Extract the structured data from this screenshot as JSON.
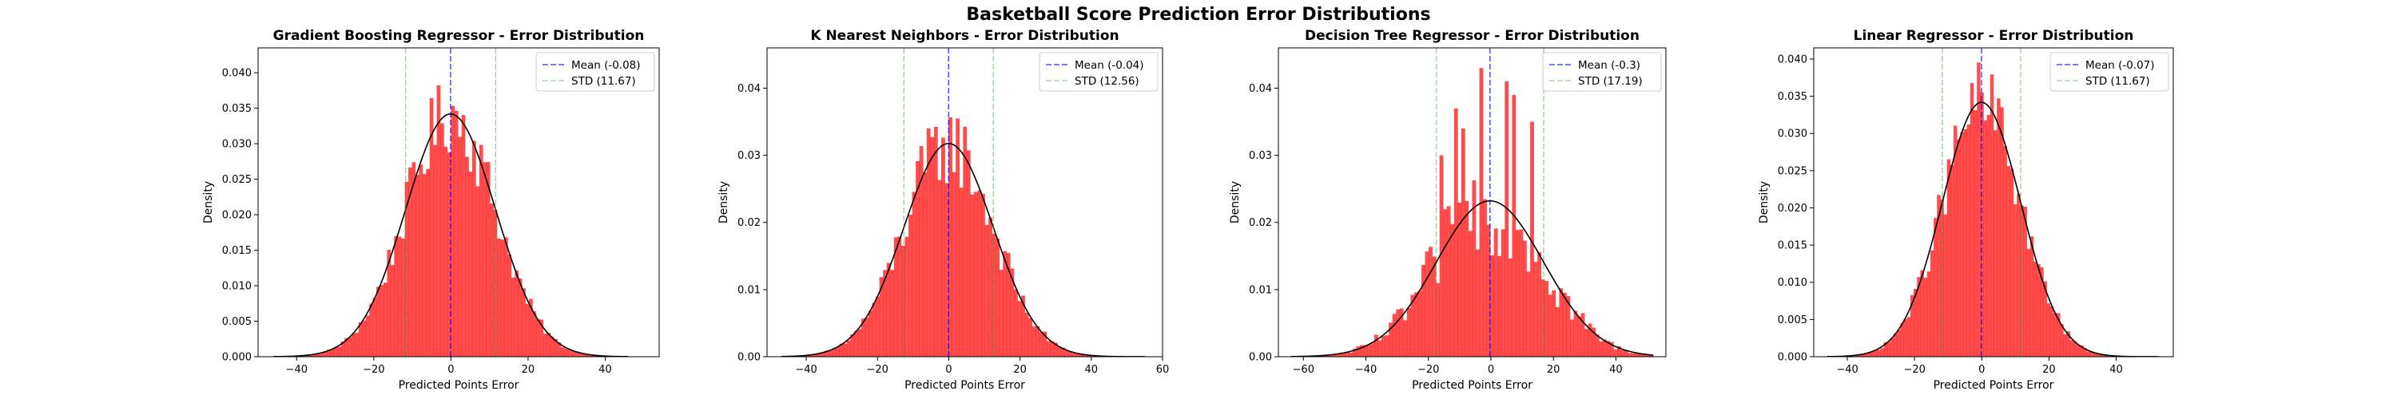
{
  "figure": {
    "suptitle": "Basketball Score Prediction Error Distributions"
  },
  "colors": {
    "bars": "#ff0000",
    "mean_line": "#0000ff",
    "std_line": "#2ca02c",
    "pdf_line": "#000000"
  },
  "chart_data": [
    {
      "type": "bar",
      "title": "Gradient Boosting Regressor - Error Distribution",
      "xlabel": "Predicted Points Error",
      "ylabel": "Density",
      "xlim": [
        -50,
        54
      ],
      "ylim": [
        0,
        0.0435
      ],
      "xticks": [
        -40,
        -20,
        0,
        20,
        40
      ],
      "xtick_labels": [
        "−40",
        "−20",
        "0",
        "20",
        "40"
      ],
      "yticks": [
        0,
        0.005,
        0.01,
        0.015,
        0.02,
        0.025,
        0.03,
        0.035,
        0.04
      ],
      "ytick_labels": [
        "0.000",
        "0.005",
        "0.010",
        "0.015",
        "0.020",
        "0.025",
        "0.030",
        "0.035",
        "0.040"
      ],
      "mean": -0.08,
      "std": 11.67,
      "hist_range": [
        -46,
        46
      ],
      "bins": 100,
      "jitter": 0.17,
      "legend": [
        "Mean (-0.08)",
        "STD (11.67)"
      ],
      "legend_loc": "upper right"
    },
    {
      "type": "bar",
      "title": "K Nearest Neighbors - Error Distribution",
      "xlabel": "Predicted Points Error",
      "ylabel": "Density",
      "xlim": [
        -51,
        60
      ],
      "ylim": [
        0,
        0.046
      ],
      "xticks": [
        -40,
        -20,
        0,
        20,
        40,
        60
      ],
      "xtick_labels": [
        "−40",
        "−20",
        "0",
        "20",
        "40",
        "60"
      ],
      "yticks": [
        0,
        0.01,
        0.02,
        0.03,
        0.04
      ],
      "ytick_labels": [
        "0.00",
        "0.01",
        "0.02",
        "0.03",
        "0.04"
      ],
      "mean": -0.04,
      "std": 12.56,
      "hist_range": [
        -47,
        55
      ],
      "bins": 100,
      "jitter": 0.2,
      "legend": [
        "Mean (-0.04)",
        "STD (12.56)"
      ],
      "legend_loc": "upper right"
    },
    {
      "type": "bar",
      "title": "Decision Tree Regressor - Error Distribution",
      "xlabel": "Predicted Points Error",
      "ylabel": "Density",
      "xlim": [
        -68,
        56
      ],
      "ylim": [
        0,
        0.046
      ],
      "xticks": [
        -60,
        -40,
        -20,
        0,
        20,
        40
      ],
      "xtick_labels": [
        "−60",
        "−40",
        "−20",
        "0",
        "20",
        "40"
      ],
      "yticks": [
        0,
        0.01,
        0.02,
        0.03,
        0.04
      ],
      "ytick_labels": [
        "0.00",
        "0.01",
        "0.02",
        "0.03",
        "0.04"
      ],
      "mean": -0.3,
      "std": 17.19,
      "hist_range": [
        -64,
        52
      ],
      "bins": 100,
      "jitter": 0.35,
      "spikes": [
        {
          "x": -12,
          "y": 0.037
        },
        {
          "x": -4,
          "y": 0.043
        },
        {
          "x": 4,
          "y": 0.041
        },
        {
          "x": 7,
          "y": 0.039
        },
        {
          "x": -9,
          "y": 0.034
        },
        {
          "x": 13,
          "y": 0.035
        },
        {
          "x": -17,
          "y": 0.03
        }
      ],
      "legend": [
        "Mean (-0.3)",
        "STD (17.19)"
      ],
      "legend_loc": "upper right"
    },
    {
      "type": "bar",
      "title": "Linear Regressor - Error Distribution",
      "xlabel": "Predicted Points Error",
      "ylabel": "Density",
      "xlim": [
        -50,
        57
      ],
      "ylim": [
        0,
        0.0415
      ],
      "xticks": [
        -40,
        -20,
        0,
        20,
        40
      ],
      "xtick_labels": [
        "−40",
        "−20",
        "0",
        "20",
        "40"
      ],
      "yticks": [
        0,
        0.005,
        0.01,
        0.015,
        0.02,
        0.025,
        0.03,
        0.035,
        0.04
      ],
      "ytick_labels": [
        "0.000",
        "0.005",
        "0.010",
        "0.015",
        "0.020",
        "0.025",
        "0.030",
        "0.035",
        "0.040"
      ],
      "mean": -0.07,
      "std": 11.67,
      "hist_range": [
        -46,
        53
      ],
      "bins": 100,
      "jitter": 0.17,
      "legend": [
        "Mean (-0.07)",
        "STD (11.67)"
      ],
      "legend_loc": "upper right"
    }
  ]
}
